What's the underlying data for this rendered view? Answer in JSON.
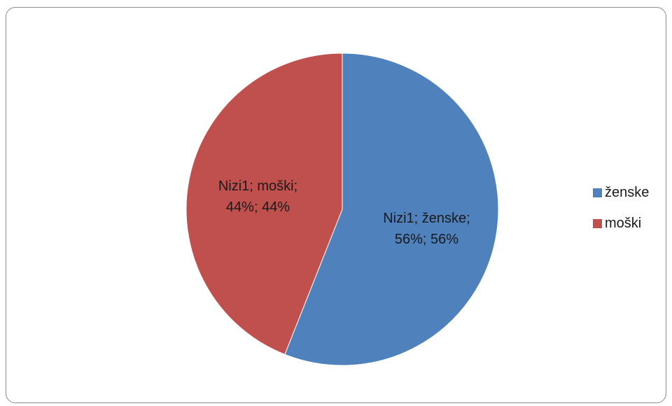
{
  "chart_data": {
    "type": "pie",
    "series_name": "Nizi1",
    "categories": [
      "ženske",
      "moški"
    ],
    "values": [
      56,
      44
    ],
    "percentages": [
      "56%",
      "44%"
    ],
    "colors": [
      "#4F81BD",
      "#C0504D"
    ],
    "slice_labels": [
      "Nizi1; ženske;",
      "Nizi1; moški;"
    ],
    "slice_sublabels": [
      "56%; 56%",
      "44%; 44%"
    ],
    "legend_position": "right",
    "start_angle": "12 o'clock",
    "direction": "clockwise"
  }
}
